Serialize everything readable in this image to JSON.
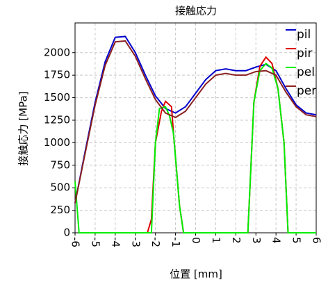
{
  "chart_data": {
    "type": "line",
    "title": "接触応力",
    "xlabel": "位置 [mm]",
    "ylabel": "接触応力 [MPa]",
    "xlim": [
      -6,
      6
    ],
    "xticks": [
      -6,
      -5,
      -4,
      -3,
      -2,
      -1,
      0,
      1,
      2,
      3,
      4,
      5,
      6
    ],
    "ylim": [
      0,
      2330
    ],
    "yticks": [
      0,
      250,
      500,
      750,
      1000,
      1250,
      1500,
      1750,
      2000
    ],
    "grid": true,
    "legend": "upper right",
    "series": [
      {
        "name": "pil",
        "color": "#0000cc",
        "x": [
          -6,
          -5.5,
          -5,
          -4.5,
          -4,
          -3.5,
          -3,
          -2.5,
          -2,
          -1.5,
          -1,
          -0.5,
          0,
          0.5,
          1,
          1.5,
          2,
          2.5,
          3,
          3.5,
          4,
          4.5,
          5,
          5.5,
          6
        ],
        "values": [
          330,
          900,
          1450,
          1900,
          2170,
          2180,
          2000,
          1750,
          1520,
          1380,
          1330,
          1400,
          1550,
          1700,
          1800,
          1820,
          1800,
          1800,
          1840,
          1870,
          1800,
          1600,
          1420,
          1330,
          1310
        ]
      },
      {
        "name": "pir",
        "color": "#dd0000",
        "x": [
          -2.4,
          -2.2,
          -2.0,
          -1.7,
          -1.5,
          -1.2,
          -1.1,
          -0.8,
          -0.6,
          2.6,
          2.9,
          3.2,
          3.5,
          3.8,
          4.1,
          4.4,
          4.6
        ],
        "values": [
          0,
          150,
          1000,
          1350,
          1460,
          1400,
          1100,
          300,
          0,
          0,
          1450,
          1850,
          1950,
          1880,
          1600,
          1000,
          0
        ]
      },
      {
        "name": "pel",
        "color": "#00ee00",
        "x": [
          -6,
          -5.8,
          -2.2,
          -2.0,
          -1.8,
          -1.5,
          -1.3,
          -1.1,
          -0.8,
          -0.6,
          2.6,
          2.9,
          3.2,
          3.5,
          3.8,
          4.1,
          4.4,
          4.6,
          6
        ],
        "values": [
          570,
          0,
          0,
          1000,
          1380,
          1400,
          1300,
          1100,
          300,
          0,
          0,
          1450,
          1800,
          1880,
          1830,
          1600,
          1000,
          0,
          0
        ]
      },
      {
        "name": "per",
        "color": "#8b2020",
        "x": [
          -6,
          -5.5,
          -5,
          -4.5,
          -4,
          -3.5,
          -3,
          -2.5,
          -2,
          -1.5,
          -1,
          -0.5,
          0,
          0.5,
          1,
          1.5,
          2,
          2.5,
          3,
          3.5,
          4,
          4.5,
          5,
          5.5,
          6
        ],
        "values": [
          330,
          880,
          1420,
          1860,
          2120,
          2130,
          1960,
          1710,
          1480,
          1330,
          1280,
          1350,
          1500,
          1650,
          1750,
          1770,
          1750,
          1750,
          1790,
          1800,
          1750,
          1560,
          1400,
          1310,
          1290
        ]
      }
    ]
  }
}
